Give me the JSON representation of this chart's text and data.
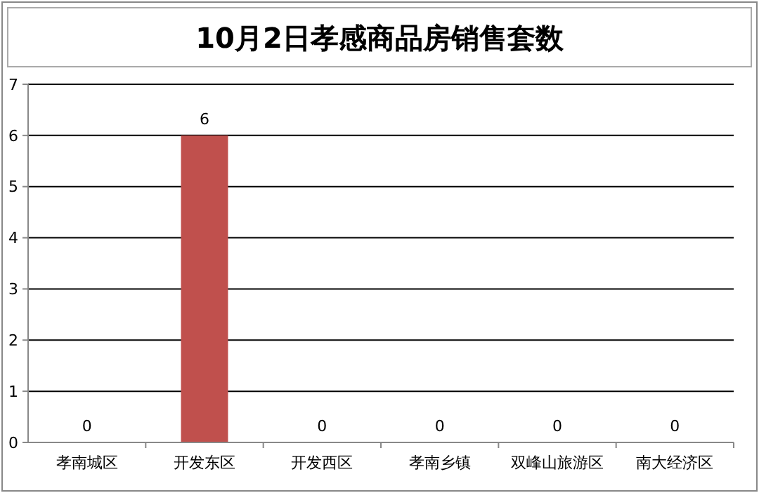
{
  "chart_data": {
    "type": "bar",
    "title": "10月2日孝感商品房销售套数",
    "categories": [
      "孝南城区",
      "开发东区",
      "开发西区",
      "孝南乡镇",
      "双峰山旅游区",
      "南大经济区"
    ],
    "values": [
      0,
      6,
      0,
      0,
      0,
      0
    ],
    "color": "#c0504d",
    "ylim": [
      0,
      7
    ],
    "yticks": [
      0,
      1,
      2,
      3,
      4,
      5,
      6,
      7
    ],
    "grid": "y",
    "data_labels": true
  }
}
